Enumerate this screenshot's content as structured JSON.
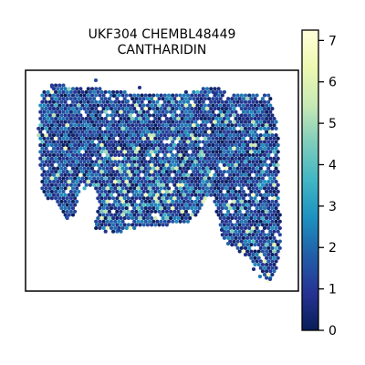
{
  "chart_data": {
    "type": "scatter",
    "title_lines": [
      "UKF304 CHEMBL48449",
      "CANTHARIDIN"
    ],
    "colormap": "YlGnBu",
    "colorbar": {
      "range": [
        0,
        7.25
      ],
      "ticks": [
        0,
        1,
        2,
        3,
        4,
        5,
        6,
        7
      ],
      "tick_labels": [
        "0",
        "1",
        "2",
        "3",
        "4",
        "5",
        "6",
        "7"
      ]
    },
    "x_axis": {
      "range": [
        0,
        100
      ],
      "ticks_shown": false
    },
    "y_axis": {
      "range": [
        0,
        100
      ],
      "ticks_shown": false
    },
    "grid": false,
    "spatial_region": {
      "description": "hexagonal spot grid of tissue spots",
      "typical_value": 1.0,
      "value_range": [
        0,
        7.2
      ],
      "high_value_spots_fraction": 0.08
    }
  }
}
